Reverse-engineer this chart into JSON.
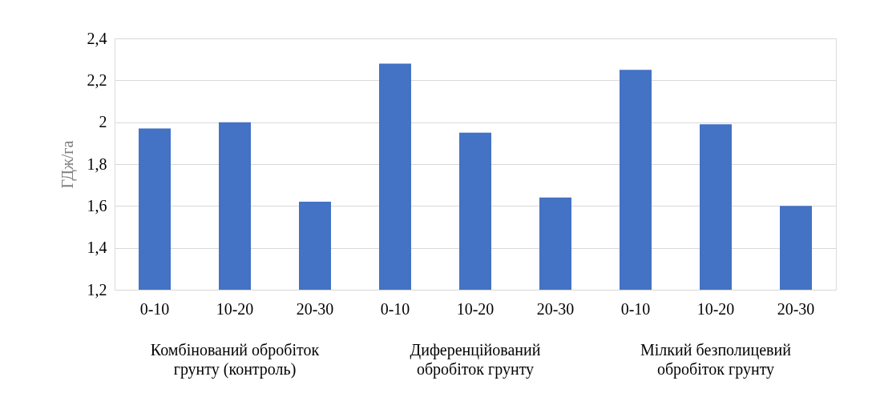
{
  "chart_data": {
    "type": "bar",
    "ylabel": "ГДж/га",
    "categories": [
      "0-10",
      "10-20",
      "20-30",
      "0-10",
      "10-20",
      "20-30",
      "0-10",
      "10-20",
      "20-30"
    ],
    "values": [
      1.97,
      2.0,
      1.62,
      2.28,
      1.95,
      1.64,
      2.25,
      1.99,
      1.6
    ],
    "color": "#4472c4",
    "ylim": [
      1.2,
      2.4
    ],
    "yticks": [
      {
        "value": 1.2,
        "label": "1,2"
      },
      {
        "value": 1.4,
        "label": "1,4"
      },
      {
        "value": 1.6,
        "label": "1,6"
      },
      {
        "value": 1.8,
        "label": "1,8"
      },
      {
        "value": 2,
        "label": "2"
      },
      {
        "value": 2.2,
        "label": "2,2"
      },
      {
        "value": 2.4,
        "label": "2,4"
      }
    ],
    "grid": "y",
    "annotations": [
      "Комбінований обробіток\nгрунту  (контроль)",
      "Диференційований\nобробіток грунту",
      "Мілкий безполицевий\nобробіток грунту"
    ]
  }
}
